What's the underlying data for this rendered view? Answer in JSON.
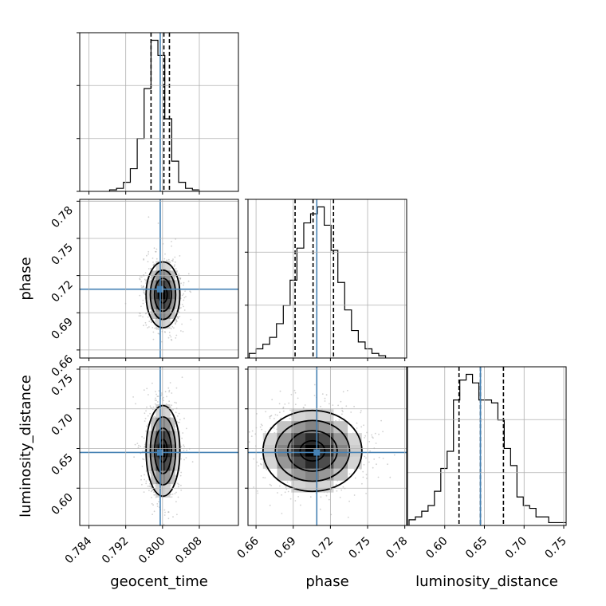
{
  "chart_data": {
    "type": "corner",
    "parameters": [
      {
        "name": "geocent_time",
        "truth": 0.7995,
        "range": [
          0.782,
          0.8165
        ],
        "ticks": [
          0.784,
          0.792,
          0.8,
          0.808
        ],
        "tick_labels": [
          "0.784",
          "0.792",
          "0.800",
          "0.808"
        ],
        "quantiles": [
          0.7975,
          0.8003,
          0.8015
        ]
      },
      {
        "name": "phase",
        "truth": 0.709,
        "range": [
          0.6535,
          0.7815
        ],
        "ticks": [
          0.66,
          0.69,
          0.72,
          0.75,
          0.78
        ],
        "tick_labels": [
          "0.66",
          "0.69",
          "0.72",
          "0.75",
          "0.78"
        ],
        "quantiles": [
          0.6915,
          0.706,
          0.7225
        ]
      },
      {
        "name": "luminosity_distance",
        "truth": 0.645,
        "range": [
          0.553,
          0.753
        ],
        "ticks": [
          0.6,
          0.65,
          0.7,
          0.75
        ],
        "tick_labels": [
          "0.60",
          "0.65",
          "0.70",
          "0.75"
        ],
        "quantiles": [
          0.618,
          0.645,
          0.674
        ]
      }
    ],
    "histograms": [
      {
        "param": "geocent_time",
        "bin_edges": [
          0.7885,
          0.79,
          0.7915,
          0.793,
          0.7945,
          0.796,
          0.7975,
          0.799,
          0.8005,
          0.802,
          0.8035,
          0.805,
          0.8065,
          0.808
        ],
        "counts": [
          1,
          2,
          6,
          15,
          35,
          68,
          100,
          90,
          48,
          20,
          6,
          2,
          1
        ]
      },
      {
        "param": "phase",
        "bin_edges": [
          0.6545,
          0.66,
          0.6655,
          0.671,
          0.6765,
          0.682,
          0.6875,
          0.693,
          0.6985,
          0.704,
          0.7095,
          0.715,
          0.7205,
          0.726,
          0.7315,
          0.737,
          0.7425,
          0.748,
          0.7535,
          0.759,
          0.7645
        ],
        "counts": [
          2,
          4,
          6,
          9,
          15,
          23,
          34,
          48,
          59,
          63,
          66,
          58,
          47,
          33,
          21,
          12,
          7,
          4,
          2,
          1
        ]
      },
      {
        "param": "luminosity_distance",
        "bin_edges": [
          0.555,
          0.563,
          0.571,
          0.579,
          0.587,
          0.595,
          0.603,
          0.611,
          0.619,
          0.627,
          0.635,
          0.643,
          0.651,
          0.659,
          0.667,
          0.675,
          0.683,
          0.691,
          0.699,
          0.707,
          0.715,
          0.723,
          0.731,
          0.739,
          0.747,
          0.755
        ],
        "counts": [
          2,
          3,
          5,
          7,
          12,
          20,
          26,
          44,
          51,
          53,
          50,
          44,
          44,
          43,
          37,
          27,
          21,
          10,
          7,
          6,
          3,
          3,
          1,
          1,
          1
        ]
      }
    ],
    "posterior_2d": [
      {
        "x": "geocent_time",
        "y": "phase",
        "center": [
          0.8001,
          0.7045
        ],
        "sigma": [
          0.00175,
          0.013
        ]
      },
      {
        "x": "geocent_time",
        "y": "luminosity_distance",
        "center": [
          0.8001,
          0.647
        ],
        "sigma": [
          0.00175,
          0.028
        ]
      },
      {
        "x": "phase",
        "y": "luminosity_distance",
        "center": [
          0.7055,
          0.647
        ],
        "sigma": [
          0.019,
          0.025
        ]
      }
    ],
    "colors": {
      "truth": "#4682b4",
      "contour": "#000000",
      "grid": "#b0b0b0",
      "quantile": "#000000"
    }
  }
}
